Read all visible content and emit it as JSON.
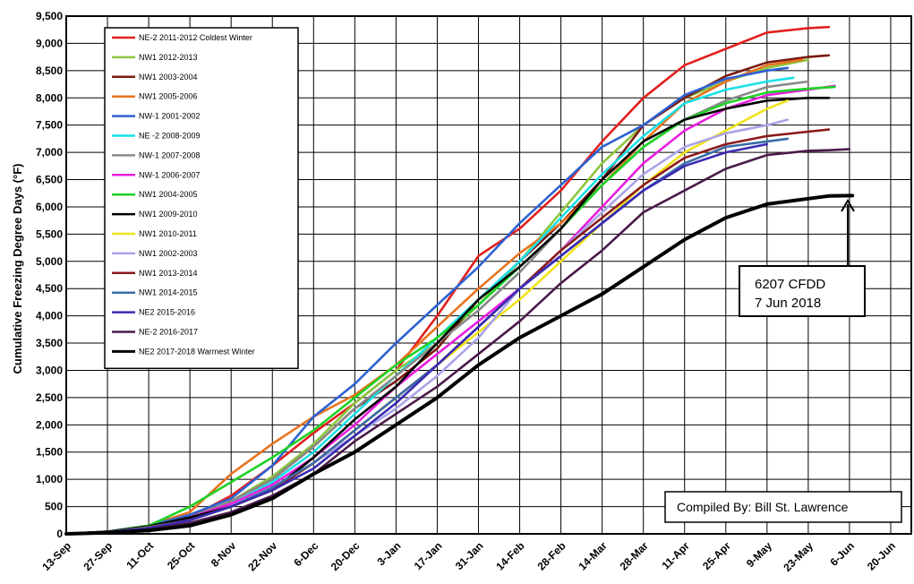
{
  "chart_data": {
    "type": "line",
    "ylabel": "Cumulative Freezing Degree Days (°F)",
    "ylim": [
      0,
      9500
    ],
    "yticks": [
      0,
      500,
      1000,
      1500,
      2000,
      2500,
      3000,
      3500,
      4000,
      4500,
      5000,
      5500,
      6000,
      6500,
      7000,
      7500,
      8000,
      8500,
      9000,
      9500
    ],
    "ytick_labels": [
      "0",
      "500",
      "1,000",
      "1,500",
      "2,000",
      "2,500",
      "3,000",
      "3,500",
      "4,000",
      "4,500",
      "5,000",
      "5,500",
      "6,000",
      "6,500",
      "7,000",
      "7,500",
      "8,000",
      "8,500",
      "9,000",
      "9,500"
    ],
    "xlim": [
      "13-Sep",
      "27-Jun"
    ],
    "x_tick_labels": [
      "13-Sep",
      "27-Sep",
      "11-Oct",
      "25-Oct",
      "8-Nov",
      "22-Nov",
      "6-Dec",
      "20-Dec",
      "3-Jan",
      "17-Jan",
      "31-Jan",
      "14-Feb",
      "28-Feb",
      "14-Mar",
      "28-Mar",
      "11-Apr",
      "25-Apr",
      "9-May",
      "23-May",
      "6-Jun",
      "20-Jun"
    ],
    "grid": true,
    "legend_position": "top-left",
    "series": [
      {
        "name": "NE-2 2011-2012 Coldest Winter",
        "color": "#e0201e",
        "x": [
          "13-Sep",
          "27-Sep",
          "11-Oct",
          "25-Oct",
          "8-Nov",
          "22-Nov",
          "6-Dec",
          "20-Dec",
          "3-Jan",
          "17-Jan",
          "31-Jan",
          "14-Feb",
          "28-Feb",
          "14-Mar",
          "28-Mar",
          "11-Apr",
          "25-Apr",
          "9-May",
          "23-May",
          "30-May"
        ],
        "values": [
          0,
          40,
          150,
          300,
          700,
          1250,
          1850,
          2400,
          3000,
          4000,
          5100,
          5600,
          6300,
          7200,
          8000,
          8600,
          8900,
          9200,
          9280,
          9300
        ]
      },
      {
        "name": "NW1 2012-2013",
        "color": "#8cc63f",
        "x": [
          "13-Sep",
          "27-Sep",
          "11-Oct",
          "25-Oct",
          "8-Nov",
          "22-Nov",
          "6-Dec",
          "20-Dec",
          "3-Jan",
          "17-Jan",
          "31-Jan",
          "14-Feb",
          "28-Feb",
          "14-Mar",
          "28-Mar",
          "11-Apr",
          "25-Apr",
          "9-May",
          "23-May"
        ],
        "values": [
          0,
          40,
          130,
          300,
          600,
          1050,
          1650,
          2400,
          3000,
          3500,
          4200,
          5000,
          5900,
          6800,
          7500,
          8000,
          8300,
          8550,
          8700
        ]
      },
      {
        "name": "NW1 2003-2004",
        "color": "#7b1a12",
        "x": [
          "13-Sep",
          "27-Sep",
          "11-Oct",
          "25-Oct",
          "8-Nov",
          "22-Nov",
          "6-Dec",
          "20-Dec",
          "3-Jan",
          "17-Jan",
          "31-Jan",
          "14-Feb",
          "28-Feb",
          "14-Mar",
          "28-Mar",
          "11-Apr",
          "25-Apr",
          "9-May",
          "23-May",
          "30-May"
        ],
        "values": [
          0,
          40,
          150,
          280,
          600,
          1000,
          1600,
          2300,
          2800,
          3400,
          4300,
          5000,
          5700,
          6500,
          7500,
          8000,
          8400,
          8650,
          8750,
          8780
        ]
      },
      {
        "name": "NW1 2005-2006",
        "color": "#e8731f",
        "x": [
          "13-Sep",
          "27-Sep",
          "11-Oct",
          "25-Oct",
          "8-Nov",
          "22-Nov",
          "6-Dec",
          "20-Dec",
          "3-Jan",
          "17-Jan",
          "31-Jan",
          "14-Feb",
          "28-Feb",
          "14-Mar",
          "28-Mar",
          "11-Apr",
          "25-Apr",
          "9-May",
          "21-May"
        ],
        "values": [
          0,
          40,
          150,
          400,
          1100,
          1650,
          2150,
          2550,
          3100,
          3800,
          4500,
          5150,
          5700,
          6400,
          7200,
          7900,
          8300,
          8600,
          8700
        ]
      },
      {
        "name": "NW-1 2001-2002",
        "color": "#2d62d2",
        "x": [
          "13-Sep",
          "27-Sep",
          "11-Oct",
          "25-Oct",
          "8-Nov",
          "22-Nov",
          "6-Dec",
          "20-Dec",
          "3-Jan",
          "17-Jan",
          "31-Jan",
          "14-Feb",
          "28-Feb",
          "14-Mar",
          "28-Mar",
          "11-Apr",
          "25-Apr",
          "9-May",
          "16-May"
        ],
        "values": [
          0,
          40,
          150,
          350,
          650,
          1250,
          2150,
          2750,
          3500,
          4200,
          4900,
          5700,
          6400,
          7100,
          7500,
          8050,
          8350,
          8500,
          8550
        ]
      },
      {
        "name": "NE -2 2008-2009",
        "color": "#19e0e8",
        "x": [
          "13-Sep",
          "27-Sep",
          "11-Oct",
          "25-Oct",
          "8-Nov",
          "22-Nov",
          "6-Dec",
          "20-Dec",
          "3-Jan",
          "17-Jan",
          "31-Jan",
          "14-Feb",
          "28-Feb",
          "14-Mar",
          "28-Mar",
          "11-Apr",
          "25-Apr",
          "9-May",
          "18-May"
        ],
        "values": [
          0,
          40,
          150,
          300,
          550,
          950,
          1500,
          2200,
          2900,
          3600,
          4300,
          5000,
          5800,
          6600,
          7300,
          7900,
          8150,
          8300,
          8370
        ]
      },
      {
        "name": "NW-1 2007-2008",
        "color": "#8a8a8a",
        "x": [
          "13-Sep",
          "27-Sep",
          "11-Oct",
          "25-Oct",
          "8-Nov",
          "22-Nov",
          "6-Dec",
          "20-Dec",
          "3-Jan",
          "17-Jan",
          "31-Jan",
          "14-Feb",
          "28-Feb",
          "14-Mar",
          "28-Mar",
          "11-Apr",
          "25-Apr",
          "9-May",
          "23-May"
        ],
        "values": [
          0,
          40,
          140,
          300,
          600,
          1000,
          1600,
          2300,
          2900,
          3500,
          4100,
          4800,
          5600,
          6400,
          7100,
          7600,
          7950,
          8200,
          8300
        ]
      },
      {
        "name": "NW-1 2006-2007",
        "color": "#e81ee0",
        "x": [
          "13-Sep",
          "27-Sep",
          "11-Oct",
          "25-Oct",
          "8-Nov",
          "22-Nov",
          "6-Dec",
          "20-Dec",
          "3-Jan",
          "17-Jan",
          "31-Jan",
          "14-Feb",
          "28-Feb",
          "14-Mar",
          "28-Mar",
          "11-Apr",
          "25-Apr",
          "9-May",
          "23-May",
          "1-Jun"
        ],
        "values": [
          0,
          40,
          140,
          300,
          550,
          900,
          1400,
          2000,
          2700,
          3300,
          3900,
          4500,
          5200,
          6000,
          6800,
          7400,
          7800,
          8050,
          8150,
          8220
        ]
      },
      {
        "name": "NW1 2004-2005",
        "color": "#1ed226",
        "x": [
          "13-Sep",
          "27-Sep",
          "11-Oct",
          "25-Oct",
          "8-Nov",
          "22-Nov",
          "6-Dec",
          "20-Dec",
          "3-Jan",
          "17-Jan",
          "31-Jan",
          "14-Feb",
          "28-Feb",
          "14-Mar",
          "28-Mar",
          "11-Apr",
          "25-Apr",
          "9-May",
          "23-May",
          "1-Jun"
        ],
        "values": [
          0,
          40,
          150,
          500,
          950,
          1400,
          1900,
          2500,
          3100,
          3600,
          4200,
          4900,
          5600,
          6400,
          7100,
          7600,
          7900,
          8100,
          8170,
          8200
        ]
      },
      {
        "name": "NW1 2009-2010",
        "color": "#000000",
        "x": [
          "13-Sep",
          "27-Sep",
          "11-Oct",
          "25-Oct",
          "8-Nov",
          "22-Nov",
          "6-Dec",
          "20-Dec",
          "3-Jan",
          "17-Jan",
          "31-Jan",
          "14-Feb",
          "28-Feb",
          "14-Mar",
          "28-Mar",
          "11-Apr",
          "25-Apr",
          "9-May",
          "23-May",
          "30-May"
        ],
        "values": [
          0,
          40,
          140,
          300,
          500,
          800,
          1400,
          2100,
          2700,
          3500,
          4300,
          4900,
          5600,
          6500,
          7200,
          7600,
          7800,
          7950,
          8000,
          8000
        ]
      },
      {
        "name": "NW1 2010-2011",
        "color": "#f0e21a",
        "x": [
          "13-Sep",
          "27-Sep",
          "11-Oct",
          "25-Oct",
          "8-Nov",
          "22-Nov",
          "6-Dec",
          "20-Dec",
          "3-Jan",
          "17-Jan",
          "31-Jan",
          "14-Feb",
          "28-Feb",
          "14-Mar",
          "28-Mar",
          "11-Apr",
          "25-Apr",
          "9-May",
          "16-May"
        ],
        "values": [
          0,
          30,
          120,
          250,
          500,
          800,
          1300,
          1900,
          2500,
          3100,
          3700,
          4300,
          5000,
          5700,
          6400,
          7000,
          7400,
          7800,
          7950
        ]
      },
      {
        "name": "NW1 2002-2003",
        "color": "#a9a4e8",
        "x": [
          "13-Sep",
          "27-Sep",
          "11-Oct",
          "25-Oct",
          "8-Nov",
          "22-Nov",
          "6-Dec",
          "20-Dec",
          "3-Jan",
          "17-Jan",
          "31-Jan",
          "14-Feb",
          "28-Feb",
          "14-Mar",
          "28-Mar",
          "11-Apr",
          "25-Apr",
          "9-May",
          "16-May"
        ],
        "values": [
          0,
          30,
          110,
          250,
          500,
          850,
          1300,
          1800,
          2300,
          2900,
          3600,
          4500,
          5200,
          5900,
          6600,
          7100,
          7350,
          7500,
          7600
        ]
      },
      {
        "name": "NW1 2013-2014",
        "color": "#8b1a1a",
        "x": [
          "13-Sep",
          "27-Sep",
          "11-Oct",
          "25-Oct",
          "8-Nov",
          "22-Nov",
          "6-Dec",
          "20-Dec",
          "3-Jan",
          "17-Jan",
          "31-Jan",
          "14-Feb",
          "28-Feb",
          "14-Mar",
          "28-Mar",
          "11-Apr",
          "25-Apr",
          "9-May",
          "23-May",
          "30-May"
        ],
        "values": [
          0,
          30,
          110,
          250,
          500,
          800,
          1300,
          1900,
          2500,
          3100,
          3800,
          4500,
          5200,
          5800,
          6400,
          6900,
          7150,
          7300,
          7380,
          7420
        ]
      },
      {
        "name": "NW1 2014-2015",
        "color": "#3b6da8",
        "x": [
          "13-Sep",
          "27-Sep",
          "11-Oct",
          "25-Oct",
          "8-Nov",
          "22-Nov",
          "6-Dec",
          "20-Dec",
          "3-Jan",
          "17-Jan",
          "31-Jan",
          "14-Feb",
          "28-Feb",
          "14-Mar",
          "28-Mar",
          "11-Apr",
          "25-Apr",
          "9-May",
          "16-May"
        ],
        "values": [
          0,
          30,
          110,
          250,
          500,
          850,
          1300,
          1900,
          2500,
          3100,
          3800,
          4500,
          5100,
          5700,
          6300,
          6800,
          7100,
          7200,
          7250
        ]
      },
      {
        "name": "NE2 2015-2016",
        "color": "#3b2ab2",
        "x": [
          "13-Sep",
          "27-Sep",
          "11-Oct",
          "25-Oct",
          "8-Nov",
          "22-Nov",
          "6-Dec",
          "20-Dec",
          "3-Jan",
          "17-Jan",
          "31-Jan",
          "14-Feb",
          "28-Feb",
          "14-Mar",
          "28-Mar",
          "11-Apr",
          "25-Apr",
          "9-May"
        ],
        "values": [
          0,
          30,
          110,
          250,
          500,
          800,
          1200,
          1800,
          2400,
          3100,
          3800,
          4500,
          5100,
          5700,
          6300,
          6750,
          7000,
          7150
        ]
      },
      {
        "name": "NE-2 2016-2017",
        "color": "#4a1a4a",
        "x": [
          "13-Sep",
          "27-Sep",
          "11-Oct",
          "25-Oct",
          "8-Nov",
          "22-Nov",
          "6-Dec",
          "20-Dec",
          "3-Jan",
          "17-Jan",
          "31-Jan",
          "14-Feb",
          "28-Feb",
          "14-Mar",
          "28-Mar",
          "11-Apr",
          "25-Apr",
          "9-May",
          "23-May",
          "30-May",
          "6-Jun"
        ],
        "values": [
          0,
          20,
          80,
          200,
          400,
          700,
          1100,
          1700,
          2200,
          2700,
          3300,
          3900,
          4600,
          5200,
          5900,
          6300,
          6700,
          6950,
          7030,
          7040,
          7060
        ]
      },
      {
        "name": "NE2 2017-2018 Warmest Winter",
        "color": "#000000",
        "x": [
          "13-Sep",
          "27-Sep",
          "11-Oct",
          "25-Oct",
          "8-Nov",
          "22-Nov",
          "6-Dec",
          "20-Dec",
          "3-Jan",
          "17-Jan",
          "31-Jan",
          "14-Feb",
          "28-Feb",
          "14-Mar",
          "28-Mar",
          "11-Apr",
          "25-Apr",
          "9-May",
          "23-May",
          "30-May",
          "7-Jun"
        ],
        "values": [
          0,
          20,
          60,
          150,
          350,
          650,
          1100,
          1500,
          2000,
          2500,
          3100,
          3600,
          4000,
          4400,
          4900,
          5400,
          5800,
          6050,
          6150,
          6200,
          6207
        ]
      }
    ],
    "annotations": [
      {
        "lines": [
          "6207 CFDD",
          "7 Jun  2018"
        ]
      },
      {
        "text": "Compiled By: Bill St. Lawrence"
      }
    ]
  }
}
